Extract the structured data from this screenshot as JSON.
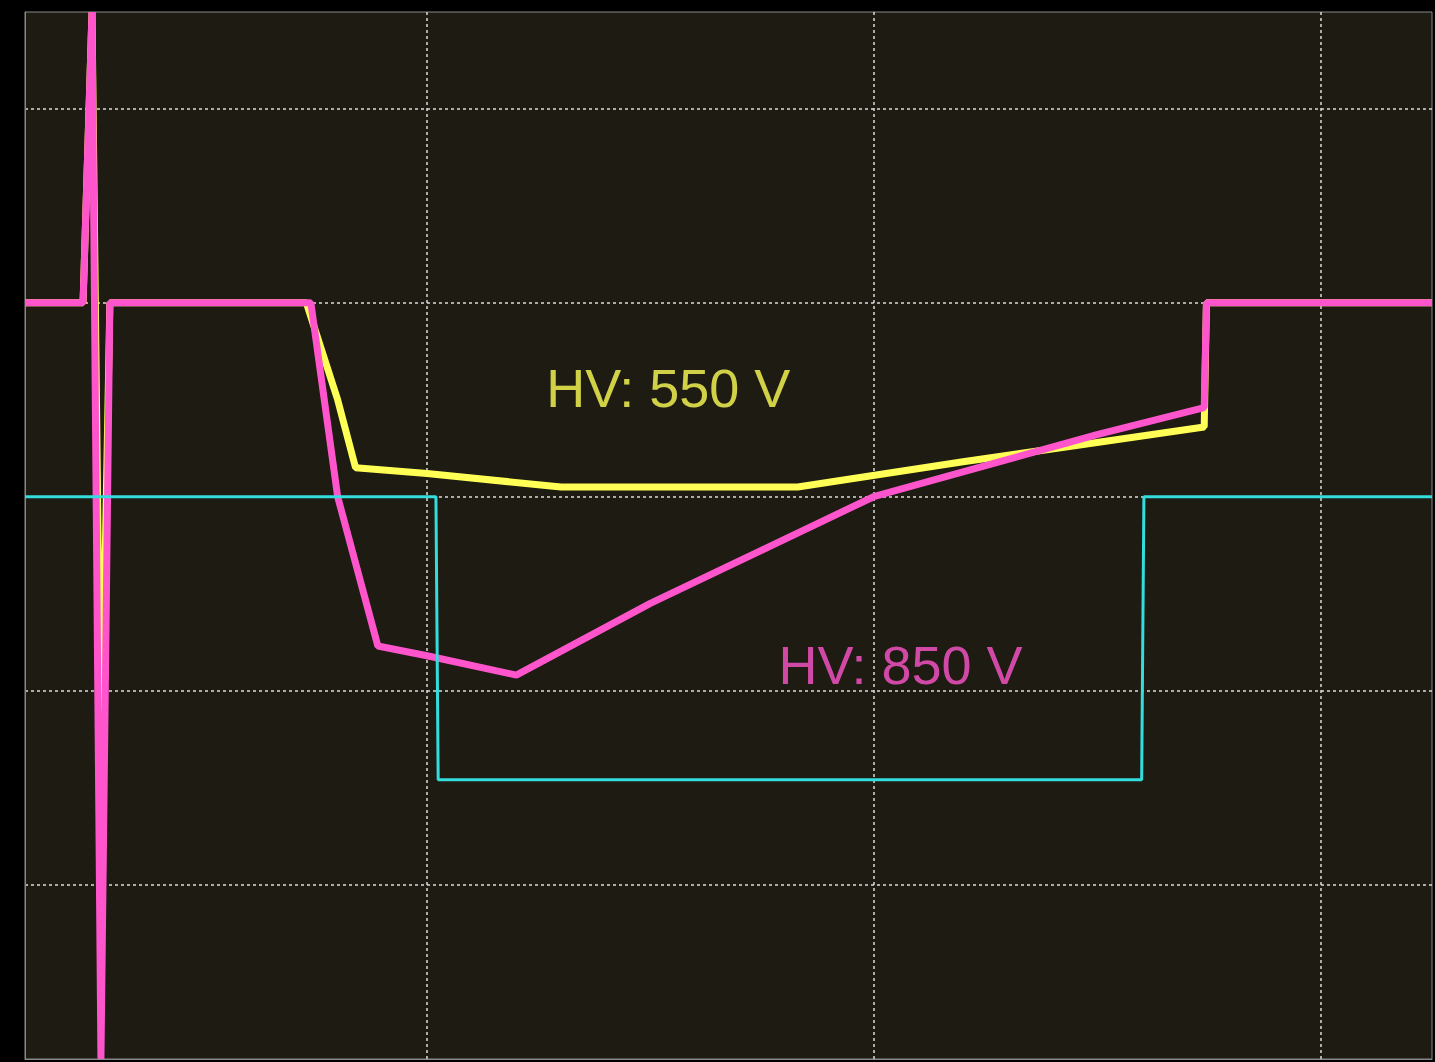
{
  "chart_data": {
    "type": "line",
    "xlim": [
      -0.9,
      2.25
    ],
    "xticks": [
      0,
      1,
      2
    ],
    "ylim": [
      -2.9,
      2.5
    ],
    "yticks": [
      -2,
      -1,
      0,
      1,
      2
    ],
    "grid": true,
    "tick_labels": false,
    "series": [
      {
        "color": "#ffff55",
        "x": [
          -0.9,
          -0.77,
          -0.75,
          -0.73,
          -0.71,
          -0.27,
          -0.2,
          -0.16,
          0,
          0.3,
          0.6,
          0.83,
          1.2,
          1.5,
          1.74,
          1.745,
          2.25
        ],
        "values": [
          1.0,
          1.0,
          2.5,
          -1.5,
          1.0,
          1.0,
          0.5,
          0.15,
          0.12,
          0.05,
          0.05,
          0.05,
          0.18,
          0.28,
          0.36,
          1.0,
          1.0
        ]
      },
      {
        "color": "#ff55cc",
        "x": [
          -0.9,
          -0.77,
          -0.75,
          -0.73,
          -0.71,
          -0.26,
          -0.2,
          -0.11,
          0.0,
          0.2,
          0.5,
          1.0,
          1.5,
          1.74,
          1.745,
          2.25
        ],
        "values": [
          1.0,
          1.0,
          2.5,
          -2.9,
          1.0,
          1.0,
          0.0,
          -0.77,
          -0.82,
          -0.92,
          -0.55,
          0.0,
          0.32,
          0.46,
          1.0,
          1.0
        ]
      },
      {
        "color": "#33dddd",
        "x": [
          -0.9,
          0.02,
          0.025,
          1.6,
          1.605,
          2.25
        ],
        "values": [
          0,
          0,
          -1.46,
          -1.46,
          0,
          0
        ]
      }
    ],
    "annotations": [
      {
        "text": "HV: 550 V",
        "x": 0.54,
        "y": 0.56,
        "color": "#ffff55"
      },
      {
        "text": "HV: 850 V",
        "x": 1.06,
        "y": -0.87,
        "color": "#ff55cc"
      }
    ]
  }
}
